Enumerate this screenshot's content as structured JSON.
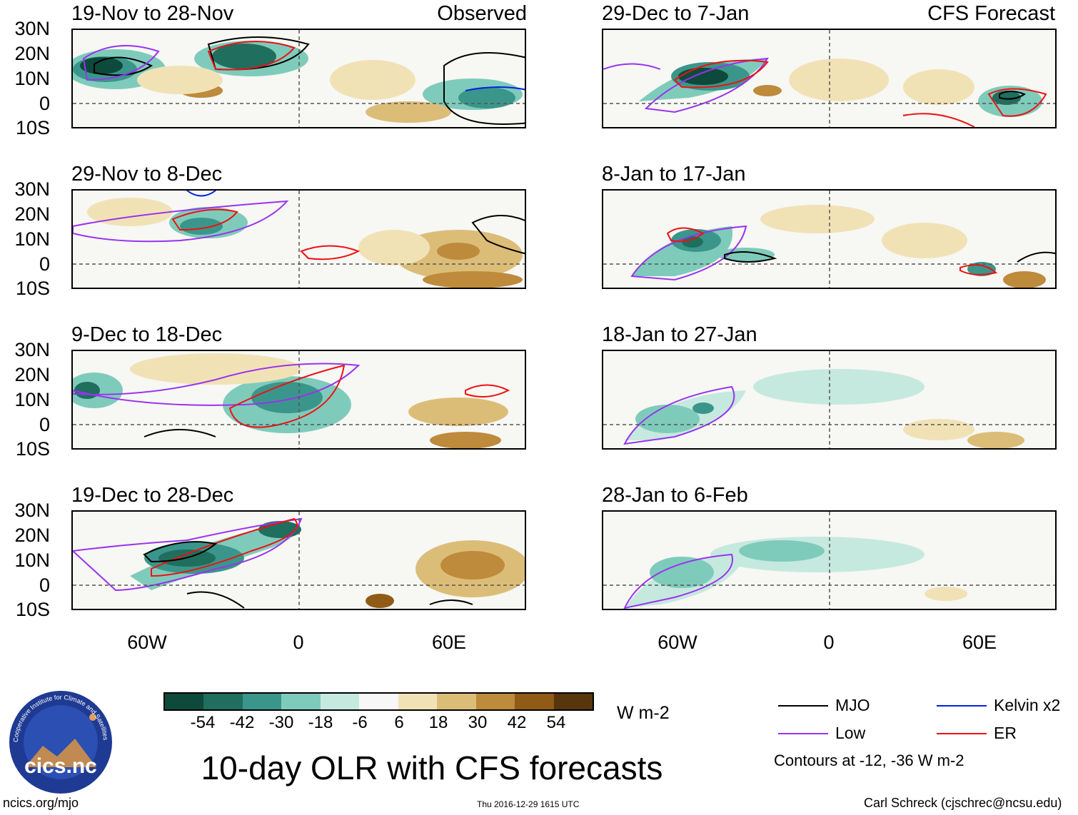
{
  "figure_title": "10-day OLR with CFS forecasts",
  "observed_label": "Observed",
  "forecast_label": "CFS Forecast",
  "panels_left": [
    {
      "title": "19-Nov to 28-Nov"
    },
    {
      "title": "29-Nov to 8-Dec"
    },
    {
      "title": "9-Dec to 18-Dec"
    },
    {
      "title": "19-Dec to 28-Dec"
    }
  ],
  "panels_right": [
    {
      "title": "29-Dec to 7-Jan"
    },
    {
      "title": "8-Jan to 17-Jan"
    },
    {
      "title": "18-Jan to 27-Jan"
    },
    {
      "title": "28-Jan to 6-Feb"
    }
  ],
  "lat_labels": [
    "30N",
    "20N",
    "10N",
    "0",
    "10S"
  ],
  "lon_labels": [
    "60W",
    "0",
    "60E"
  ],
  "colorbar": {
    "unit": "W m-2",
    "tick_labels": [
      "-54",
      "-42",
      "-30",
      "-18",
      "-6",
      "6",
      "18",
      "30",
      "42",
      "54"
    ],
    "colors": [
      "#0d4a3c",
      "#1f6e5e",
      "#3a968a",
      "#7fcbbb",
      "#c6e9df",
      "#f7f7f7",
      "#f1e2b6",
      "#dcbd78",
      "#be8a3b",
      "#8f5b17",
      "#58350c"
    ]
  },
  "legend": {
    "items": [
      {
        "label": "MJO",
        "color": "#000000"
      },
      {
        "label": "Kelvin x2",
        "color": "#0022dd"
      },
      {
        "label": "Low",
        "color": "#9933ee"
      },
      {
        "label": "ER",
        "color": "#ee1111"
      }
    ],
    "contour_note": "Contours at -12, -36 W m-2"
  },
  "logo_text": "cics.nc",
  "logo_ring_text": "Cooperative Institute for Climate and Satellites",
  "footer": {
    "left": "ncics.org/mjo",
    "center": "Thu 2016-12-29 1615 UTC",
    "right": "Carl Schreck (cjschrec@ncsu.edu)"
  }
}
